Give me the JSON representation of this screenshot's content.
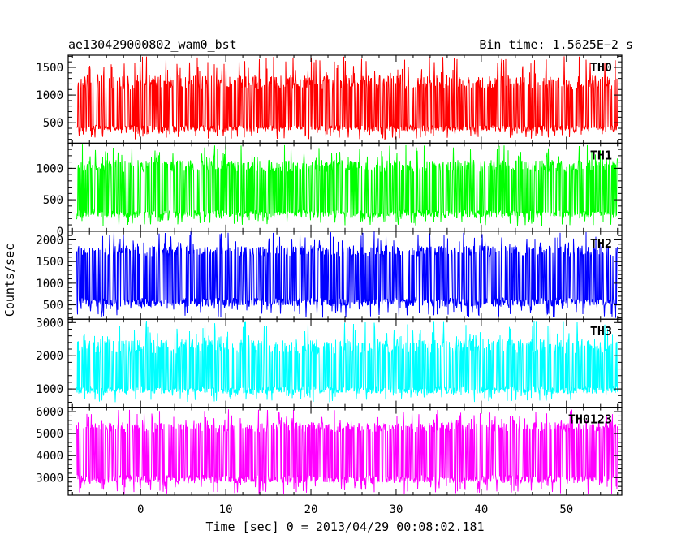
{
  "chart_data": {
    "type": "line",
    "title_left": "ae130429000802_wam0_bst",
    "title_right": "Bin time: 1.5625E−2 s",
    "ylabel": "Counts/sec",
    "xlabel": "Time [sec] 0 = 2013/04/29 00:08:02.181",
    "xlim": [
      -8.5,
      56.5
    ],
    "data_x_range": [
      -7.5,
      56.0
    ],
    "x_ticks": [
      0,
      10,
      20,
      30,
      40,
      50
    ],
    "x_tick_labels": [
      "0",
      "10",
      "20",
      "30",
      "40",
      "50"
    ],
    "grid": false,
    "panels": [
      {
        "name": "TH0",
        "color": "#ff0000",
        "ylim": [
          130,
          1720
        ],
        "y_ticks": [
          500,
          1000,
          1500
        ],
        "y_tick_labels": [
          "500",
          "1000",
          "1500"
        ],
        "band": [
          420,
          1180
        ],
        "spike_range": [
          200,
          1700
        ]
      },
      {
        "name": "TH1",
        "color": "#00ff00",
        "ylim": [
          0,
          1400
        ],
        "y_ticks": [
          0,
          500,
          1000
        ],
        "y_tick_labels": [
          "0",
          "500",
          "1000"
        ],
        "band": [
          300,
          1000
        ],
        "spike_range": [
          80,
          1380
        ]
      },
      {
        "name": "TH2",
        "color": "#0000ff",
        "ylim": [
          170,
          2200
        ],
        "y_ticks": [
          500,
          1000,
          1500,
          2000
        ],
        "y_tick_labels": [
          "500",
          "1000",
          "1500",
          "2000"
        ],
        "band": [
          600,
          1700
        ],
        "spike_range": [
          200,
          2200
        ]
      },
      {
        "name": "TH3",
        "color": "#00ffff",
        "ylim": [
          450,
          3100
        ],
        "y_ticks": [
          1000,
          2000,
          3000
        ],
        "y_tick_labels": [
          "1000",
          "2000",
          "3000"
        ],
        "band": [
          1000,
          2200
        ],
        "spike_range": [
          600,
          3050
        ]
      },
      {
        "name": "TH0123",
        "color": "#ff00ff",
        "ylim": [
          2200,
          6200
        ],
        "y_ticks": [
          3000,
          4000,
          5000,
          6000
        ],
        "y_tick_labels": [
          "3000",
          "4000",
          "5000",
          "6000"
        ],
        "band": [
          3000,
          5200
        ],
        "spike_range": [
          2250,
          6100
        ]
      }
    ]
  }
}
